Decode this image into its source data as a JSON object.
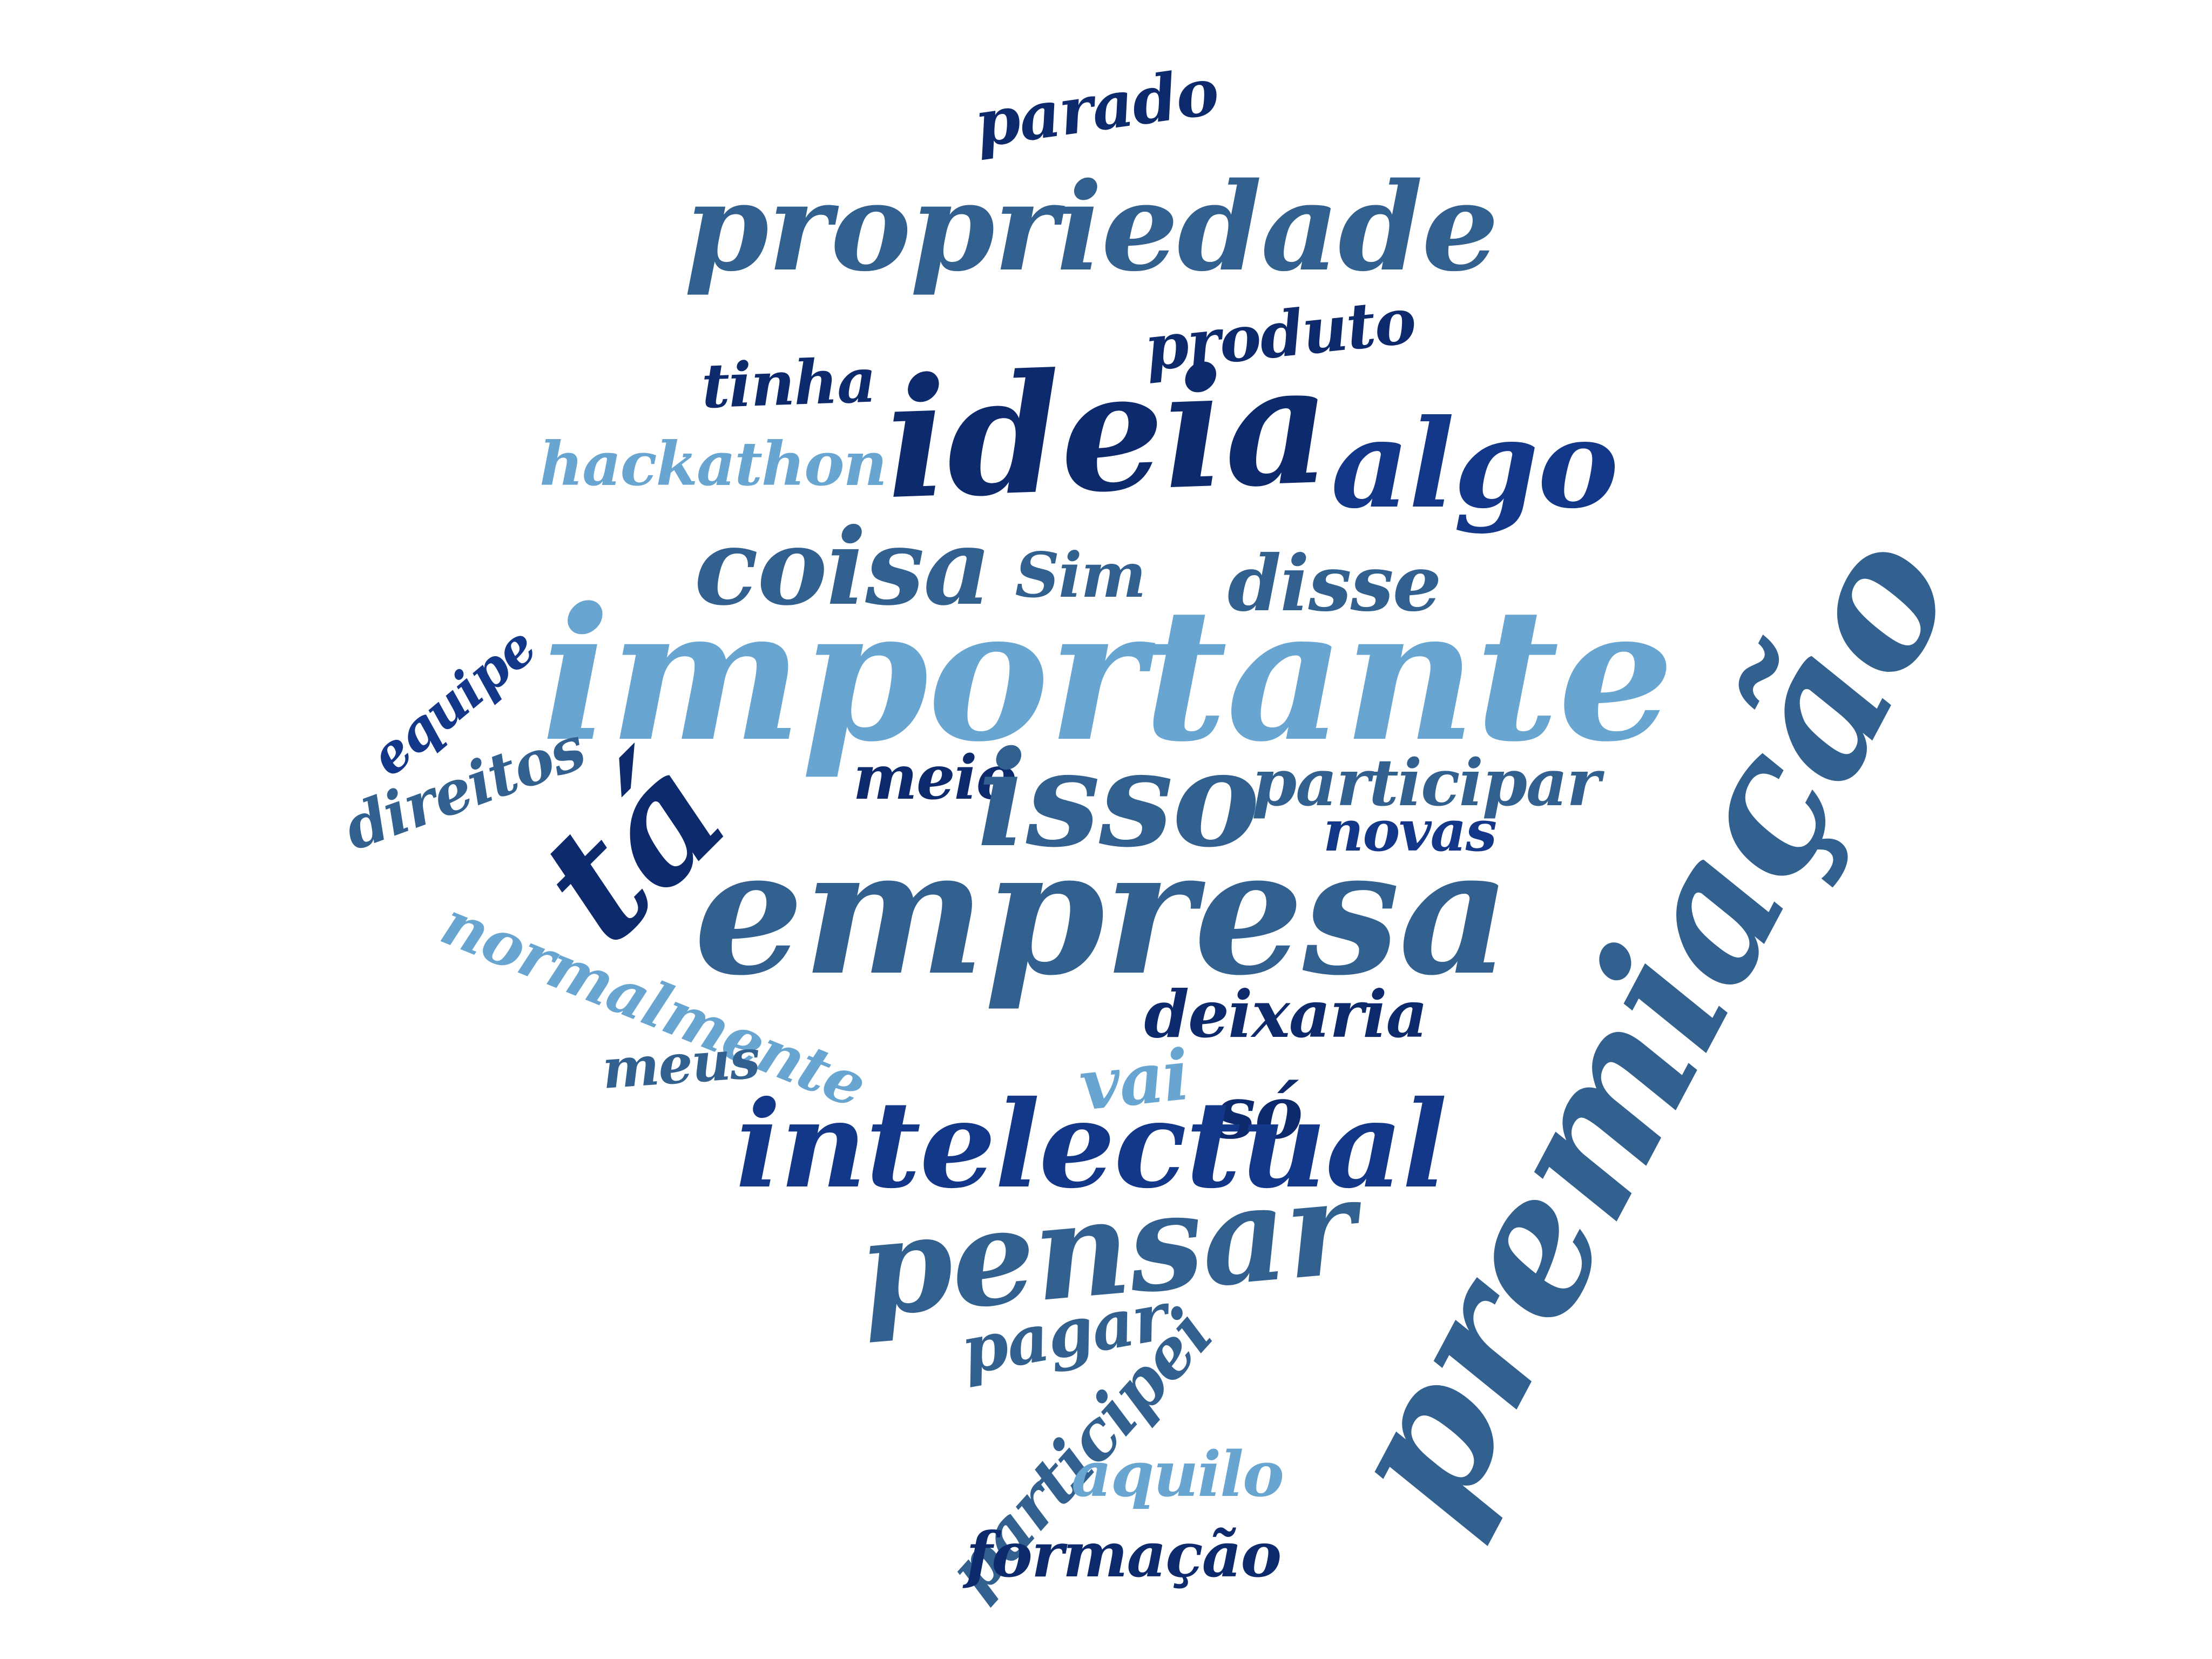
{
  "colors": {
    "background": "#ffffff",
    "dark_navy": "#0d2a6c",
    "royal_blue": "#13388a",
    "steel_blue": "#33618f",
    "mid_blue": "#3f73a4",
    "light_blue": "#68a5d0"
  },
  "words": [
    {
      "id": "parado",
      "text": "parado",
      "color": "#0d2a6c"
    },
    {
      "id": "propriedade",
      "text": "propriedade",
      "color": "#33618f"
    },
    {
      "id": "produto",
      "text": "produto",
      "color": "#0d2a6c"
    },
    {
      "id": "tinha",
      "text": "tinha",
      "color": "#0d2a6c"
    },
    {
      "id": "ideia",
      "text": "ideia",
      "color": "#0d2a6c"
    },
    {
      "id": "algo",
      "text": "algo",
      "color": "#13388a"
    },
    {
      "id": "hackathon",
      "text": "hackathon",
      "color": "#68a5d0"
    },
    {
      "id": "coisa",
      "text": "coisa",
      "color": "#33618f"
    },
    {
      "id": "sim",
      "text": "Sim",
      "color": "#33618f"
    },
    {
      "id": "disse",
      "text": "disse",
      "color": "#33618f"
    },
    {
      "id": "importante",
      "text": "importante",
      "color": "#68a5d0"
    },
    {
      "id": "equipe",
      "text": "equipe",
      "color": "#13388a"
    },
    {
      "id": "direitos",
      "text": "direitos",
      "color": "#33618f"
    },
    {
      "id": "ta",
      "text": "tá",
      "color": "#0d2a6c"
    },
    {
      "id": "meio",
      "text": "meio",
      "color": "#0d2a6c"
    },
    {
      "id": "isso",
      "text": "isso",
      "color": "#33618f"
    },
    {
      "id": "participar",
      "text": "participar",
      "color": "#33618f"
    },
    {
      "id": "novas",
      "text": "novas",
      "color": "#13388a"
    },
    {
      "id": "premiacao",
      "text": "premiação",
      "color": "#33618f"
    },
    {
      "id": "empresa",
      "text": "empresa",
      "color": "#33618f"
    },
    {
      "id": "normalmente",
      "text": "normalmente",
      "color": "#68a5d0"
    },
    {
      "id": "deixaria",
      "text": "deixaria",
      "color": "#0d2a6c"
    },
    {
      "id": "meus",
      "text": "meus",
      "color": "#33618f"
    },
    {
      "id": "vai",
      "text": "vai",
      "color": "#68a5d0"
    },
    {
      "id": "so",
      "text": "só",
      "color": "#0d2a6c"
    },
    {
      "id": "intelectual",
      "text": "intelectual",
      "color": "#13388a"
    },
    {
      "id": "pensar",
      "text": "pensar",
      "color": "#33618f"
    },
    {
      "id": "pagar",
      "text": "pagar",
      "color": "#33618f"
    },
    {
      "id": "participei",
      "text": "participei",
      "color": "#33618f"
    },
    {
      "id": "aquilo",
      "text": "aquilo",
      "color": "#68a5d0"
    },
    {
      "id": "formacao",
      "text": "formação",
      "color": "#0d2a6c"
    }
  ]
}
